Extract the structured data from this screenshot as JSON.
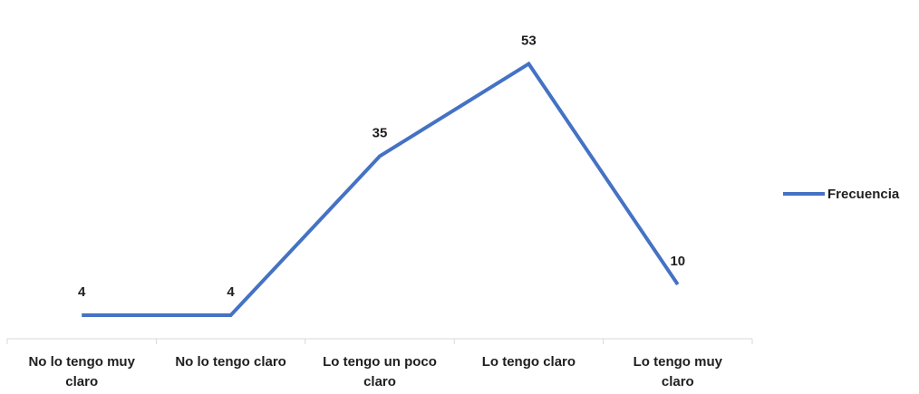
{
  "chart_data": {
    "type": "line",
    "categories": [
      [
        "No lo tengo muy",
        "claro"
      ],
      [
        "No lo tengo claro"
      ],
      [
        "Lo tengo un poco",
        "claro"
      ],
      [
        "Lo tengo claro"
      ],
      [
        "Lo tengo muy",
        "claro"
      ]
    ],
    "series": [
      {
        "name": "Frecuencia",
        "values": [
          4,
          4,
          35,
          53,
          10
        ],
        "color": "#4472c4"
      }
    ],
    "title": "",
    "xlabel": "",
    "ylabel": "",
    "ylim": [
      0,
      60
    ],
    "grid": false,
    "legend": "right",
    "data_labels": true
  }
}
